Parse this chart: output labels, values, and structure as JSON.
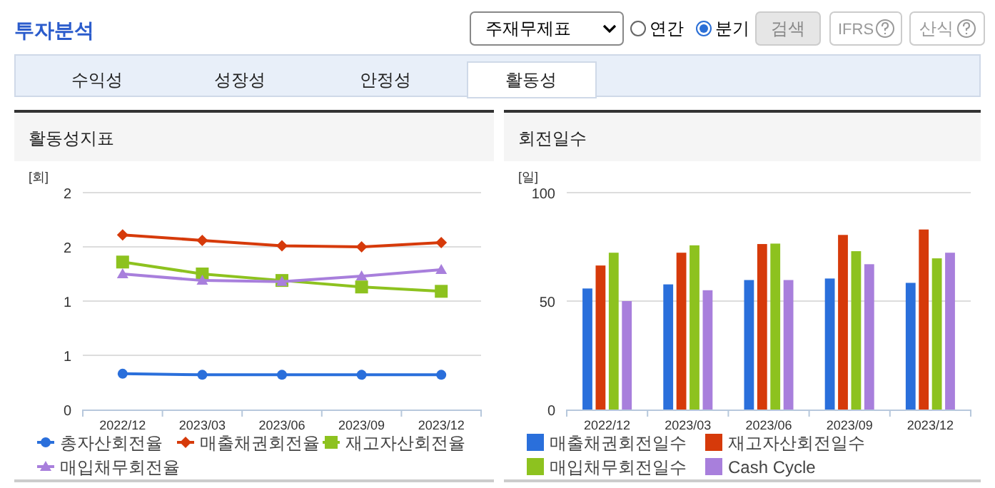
{
  "chart_data": [
    {
      "type": "other",
      "title": "투자분석",
      "annotations": [
        "주재무제표",
        "연간",
        "분기",
        "검색",
        "IFRS",
        "산식",
        "수익성",
        "성장성",
        "안정성",
        "활동성"
      ]
    },
    {
      "type": "line",
      "title": "활동성지표",
      "ylabel": "[회]",
      "categories": [
        "2022/12",
        "2023/03",
        "2023/06",
        "2023/09",
        "2023/12"
      ],
      "ylim": [
        0,
        2
      ],
      "yticks": [
        0,
        {
          "value": 0.5,
          "label": "1"
        },
        1,
        {
          "value": 1.5,
          "label": "2"
        },
        2
      ],
      "grid": "y",
      "legend": "bottom",
      "series": [
        {
          "name": "총자산회전율",
          "color": "#2a6fdb",
          "marker": "circle",
          "values": [
            0.33,
            0.32,
            0.32,
            0.32,
            0.32
          ]
        },
        {
          "name": "매출채권회전율",
          "color": "#d63a0a",
          "marker": "diamond",
          "values": [
            1.61,
            1.56,
            1.51,
            1.5,
            1.54
          ]
        },
        {
          "name": "재고자산회전율",
          "color": "#8dc21f",
          "marker": "square",
          "values": [
            1.36,
            1.25,
            1.19,
            1.13,
            1.09
          ]
        },
        {
          "name": "매입채무회전율",
          "color": "#a87fdc",
          "marker": "triangle",
          "values": [
            1.25,
            1.19,
            1.18,
            1.23,
            1.29
          ]
        }
      ]
    },
    {
      "type": "bar",
      "title": "회전일수",
      "ylabel": "[일]",
      "categories": [
        "2022/12",
        "2023/03",
        "2023/06",
        "2023/09",
        "2023/12"
      ],
      "ylim": [
        0,
        100
      ],
      "yticks": [
        0,
        50,
        100
      ],
      "grid": "y",
      "legend": "bottom",
      "series": [
        {
          "name": "매출채권회전일수",
          "color": "#2a6fdb",
          "values": [
            55.8,
            57.7,
            59.7,
            60.4,
            58.4
          ]
        },
        {
          "name": "재고자산회전일수",
          "color": "#d63a0a",
          "values": [
            66.4,
            72.3,
            76.3,
            80.5,
            83
          ]
        },
        {
          "name": "매입채무회전일수",
          "color": "#8dc21f",
          "values": [
            72.3,
            75.7,
            76.5,
            73,
            69.7
          ]
        },
        {
          "name": "Cash Cycle",
          "color": "#a87fdc",
          "values": [
            50,
            55,
            59.7,
            67,
            72.3
          ]
        }
      ]
    }
  ]
}
